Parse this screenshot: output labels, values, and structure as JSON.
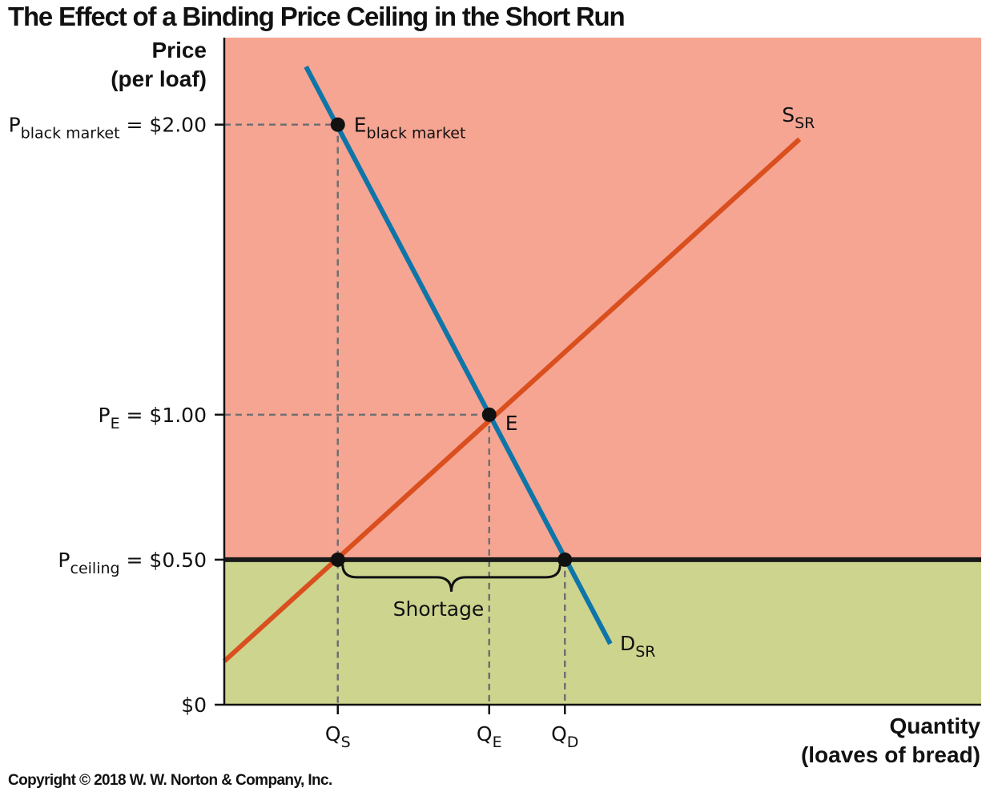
{
  "chart_data": {
    "type": "line",
    "title": "The Effect of a Binding Price Ceiling in the Short Run",
    "ylabel": [
      "Price",
      "(per loaf)"
    ],
    "xlabel": [
      "Quantity",
      "(loaves of bread)"
    ],
    "copyright": "Copyright © 2018 W. W. Norton & Company, Inc.",
    "ylim": [
      0,
      2.3
    ],
    "xlim": [
      0,
      10
    ],
    "y_ticks": [
      {
        "value": 2.0,
        "main": "P",
        "sub": "black market",
        "suffix": " = $2.00",
        "guide": true
      },
      {
        "value": 1.0,
        "main": "P",
        "sub": "E",
        "suffix": " = $1.00",
        "guide": true
      },
      {
        "value": 0.5,
        "main": "P",
        "sub": "ceiling",
        "suffix": " = $0.50",
        "guide": false
      },
      {
        "value": 0,
        "main": "$0",
        "sub": "",
        "suffix": "",
        "guide": false
      }
    ],
    "x_ticks": [
      {
        "value": 1.5,
        "main": "Q",
        "sub": "S"
      },
      {
        "value": 3.5,
        "main": "Q",
        "sub": "E"
      },
      {
        "value": 4.5,
        "main": "Q",
        "sub": "D"
      }
    ],
    "regions": [
      {
        "name": "above ceiling",
        "y_from": 0.5,
        "y_to": 2.3,
        "color": "#f6a593"
      },
      {
        "name": "below ceiling",
        "y_from": 0,
        "y_to": 0.5,
        "color": "#cdd48e"
      }
    ],
    "series": [
      {
        "name": "S",
        "sub": "SR",
        "color": "#d94f1e",
        "points": [
          [
            0,
            0.15
          ],
          [
            7.6,
            1.95
          ]
        ]
      },
      {
        "name": "D",
        "sub": "SR",
        "color": "#0f75a8",
        "points": [
          [
            1.08,
            2.2
          ],
          [
            5.1,
            0.21
          ]
        ]
      }
    ],
    "ceiling": {
      "value": 0.5,
      "color": "#1a1a1a"
    },
    "points": [
      {
        "x": 1.5,
        "y": 2.0,
        "main": "E",
        "sub": "black market"
      },
      {
        "x": 3.5,
        "y": 1.0,
        "main": "E",
        "sub": ""
      },
      {
        "x": 1.5,
        "y": 0.5,
        "main": "",
        "sub": ""
      },
      {
        "x": 4.5,
        "y": 0.5,
        "main": "",
        "sub": ""
      }
    ],
    "annotations": [
      {
        "text": "Shortage",
        "x_from": 1.5,
        "x_to": 4.5
      }
    ]
  }
}
